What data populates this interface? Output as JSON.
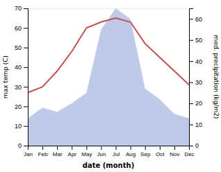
{
  "chart_data": {
    "type": "line",
    "categories": [
      "Jan",
      "Feb",
      "Mar",
      "Apr",
      "May",
      "Jun",
      "Jul",
      "Aug",
      "Sep",
      "Oct",
      "Nov",
      "Dec"
    ],
    "series": [
      {
        "type": "area",
        "axis": "y2",
        "color": "#bfc9e8",
        "values": [
          13,
          18,
          16,
          20,
          25,
          55,
          65,
          60,
          27,
          22,
          15,
          13
        ]
      },
      {
        "type": "line",
        "color": "#c0504d",
        "values": [
          27,
          30,
          38,
          48,
          60,
          63,
          65,
          63,
          52,
          45,
          38,
          31
        ]
      }
    ],
    "xlabel": "date (month)",
    "ylabel": "max temp (C)",
    "y2label": "med. precipitation (kg/m2)",
    "ylim": [
      0,
      70
    ],
    "yticks": [
      0,
      10,
      20,
      30,
      40,
      50,
      60,
      70
    ],
    "y2lim": [
      0,
      65
    ],
    "y2ticks": [
      0,
      10,
      20,
      30,
      40,
      50,
      60
    ]
  }
}
